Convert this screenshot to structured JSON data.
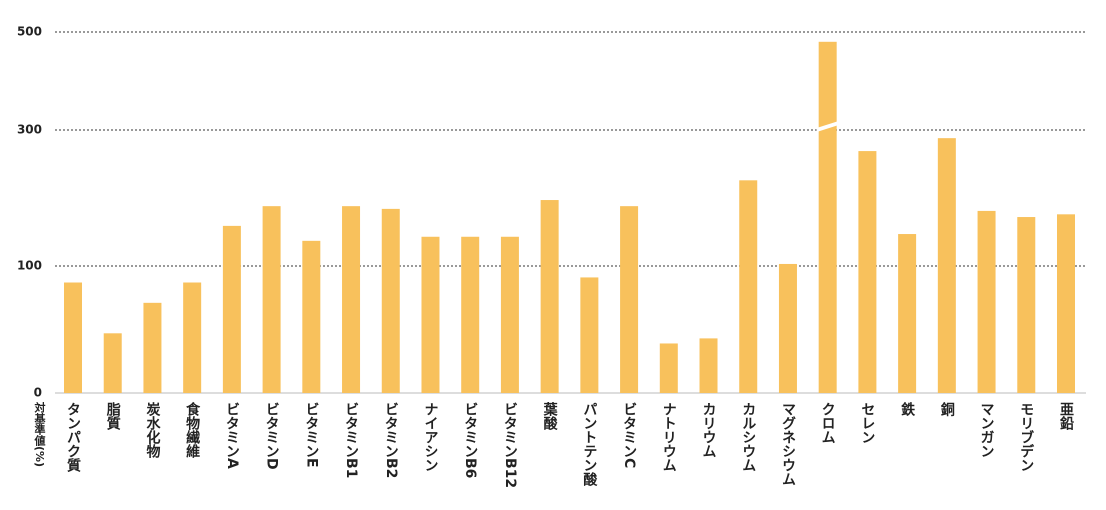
{
  "chart_data": {
    "type": "bar",
    "y_label": "対基準値(%)",
    "categories": [
      "タンパク質",
      "脂質",
      "炭水化物",
      "食物繊維",
      "ビタミンA",
      "ビタミンD",
      "ビタミンE",
      "ビタミンB1",
      "ビタミンB2",
      "ナイアシン",
      "ビタミンB6",
      "ビタミンB12",
      "葉酸",
      "パントテン酸",
      "ビタミンC",
      "ナトリウム",
      "カリウム",
      "カルシウム",
      "マグネシウム",
      "クロム",
      "セレン",
      "鉄",
      "銅",
      "マンガン",
      "モリブデン",
      "亜鉛"
    ],
    "values": [
      87,
      47,
      71,
      87,
      159,
      188,
      137,
      188,
      184,
      143,
      143,
      143,
      197,
      91,
      188,
      39,
      43,
      226,
      103,
      480,
      269,
      147,
      288,
      181,
      172,
      176
    ],
    "color": "#f8c15c",
    "ylim": [
      0,
      500
    ],
    "yticks": [
      0,
      100,
      300,
      500
    ],
    "grid": true
  }
}
